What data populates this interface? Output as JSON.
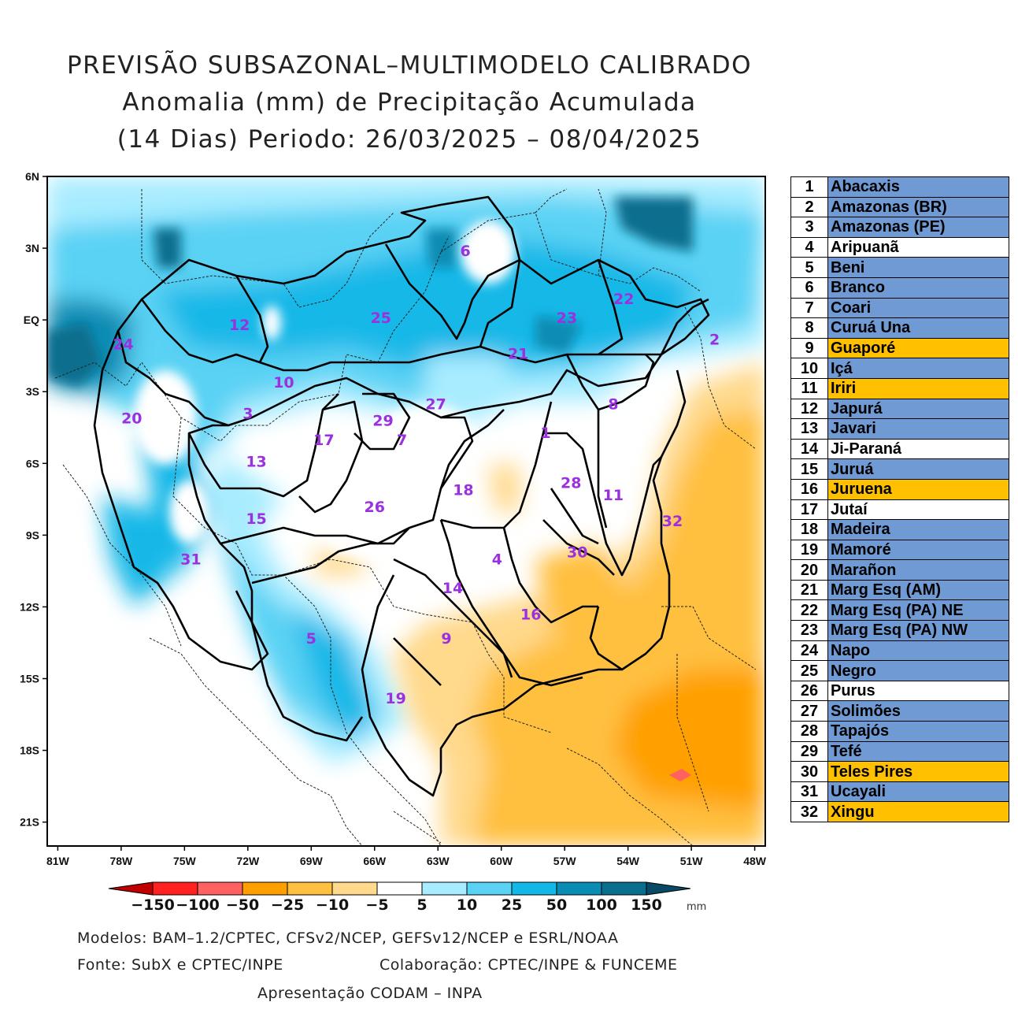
{
  "title": {
    "line1": "PREVISÃO SUBSAZONAL–MULTIMODELO CALIBRADO",
    "line2": "Anomalia (mm) de Precipitação Acumulada",
    "line3": "(14 Dias) Periodo: 26/03/2025 – 08/04/2025"
  },
  "map": {
    "lat_labels": [
      "6N",
      "3N",
      "EQ",
      "3S",
      "6S",
      "9S",
      "12S",
      "15S",
      "18S",
      "21S"
    ],
    "lon_labels": [
      "81W",
      "78W",
      "75W",
      "72W",
      "69W",
      "66W",
      "63W",
      "60W",
      "57W",
      "54W",
      "51W",
      "48W"
    ],
    "basin_labels": [
      {
        "id": "1",
        "lon": -57.9,
        "lat": -4.7
      },
      {
        "id": "2",
        "lon": -49.9,
        "lat": -0.8
      },
      {
        "id": "3",
        "lon": -72.0,
        "lat": -3.9
      },
      {
        "id": "4",
        "lon": -60.2,
        "lat": -10.0
      },
      {
        "id": "5",
        "lon": -69.0,
        "lat": -13.3
      },
      {
        "id": "6",
        "lon": -61.7,
        "lat": 2.9
      },
      {
        "id": "7",
        "lon": -64.7,
        "lat": -5.0
      },
      {
        "id": "8",
        "lon": -54.7,
        "lat": -3.5
      },
      {
        "id": "9",
        "lon": -62.6,
        "lat": -13.3
      },
      {
        "id": "10",
        "lon": -70.3,
        "lat": -2.6
      },
      {
        "id": "11",
        "lon": -54.7,
        "lat": -7.3
      },
      {
        "id": "12",
        "lon": -72.4,
        "lat": -0.2
      },
      {
        "id": "13",
        "lon": -71.6,
        "lat": -5.9
      },
      {
        "id": "14",
        "lon": -62.3,
        "lat": -11.2
      },
      {
        "id": "15",
        "lon": -71.6,
        "lat": -8.3
      },
      {
        "id": "16",
        "lon": -58.6,
        "lat": -12.3
      },
      {
        "id": "17",
        "lon": -68.4,
        "lat": -5.0
      },
      {
        "id": "18",
        "lon": -61.8,
        "lat": -7.1
      },
      {
        "id": "19",
        "lon": -65.0,
        "lat": -15.8
      },
      {
        "id": "20",
        "lon": -77.5,
        "lat": -4.1
      },
      {
        "id": "21",
        "lon": -59.2,
        "lat": -1.4
      },
      {
        "id": "22",
        "lon": -54.2,
        "lat": 0.9
      },
      {
        "id": "23",
        "lon": -56.9,
        "lat": 0.1
      },
      {
        "id": "24",
        "lon": -77.9,
        "lat": -1.0
      },
      {
        "id": "25",
        "lon": -65.7,
        "lat": 0.1
      },
      {
        "id": "26",
        "lon": -66.0,
        "lat": -7.8
      },
      {
        "id": "27",
        "lon": -63.1,
        "lat": -3.5
      },
      {
        "id": "28",
        "lon": -56.7,
        "lat": -6.8
      },
      {
        "id": "29",
        "lon": -65.6,
        "lat": -4.2
      },
      {
        "id": "30",
        "lon": -56.4,
        "lat": -9.7
      },
      {
        "id": "31",
        "lon": -74.7,
        "lat": -10.0
      },
      {
        "id": "32",
        "lon": -51.9,
        "lat": -8.4
      }
    ]
  },
  "legend": [
    {
      "num": "1",
      "name": "Abacaxis",
      "color": "#6f9ad3"
    },
    {
      "num": "2",
      "name": "Amazonas (BR)",
      "color": "#6f9ad3"
    },
    {
      "num": "3",
      "name": "Amazonas (PE)",
      "color": "#6f9ad3"
    },
    {
      "num": "4",
      "name": "Aripuanã",
      "color": "#ffffff"
    },
    {
      "num": "5",
      "name": "Beni",
      "color": "#6f9ad3"
    },
    {
      "num": "6",
      "name": "Branco",
      "color": "#6f9ad3"
    },
    {
      "num": "7",
      "name": "Coari",
      "color": "#6f9ad3"
    },
    {
      "num": "8",
      "name": "Curuá Una",
      "color": "#6f9ad3"
    },
    {
      "num": "9",
      "name": "Guaporé",
      "color": "#ffc000"
    },
    {
      "num": "10",
      "name": "Içá",
      "color": "#6f9ad3"
    },
    {
      "num": "11",
      "name": "Iriri",
      "color": "#ffc000"
    },
    {
      "num": "12",
      "name": "Japurá",
      "color": "#6f9ad3"
    },
    {
      "num": "13",
      "name": "Javari",
      "color": "#6f9ad3"
    },
    {
      "num": "14",
      "name": "Ji-Paraná",
      "color": "#ffffff"
    },
    {
      "num": "15",
      "name": "Juruá",
      "color": "#6f9ad3"
    },
    {
      "num": "16",
      "name": "Juruena",
      "color": "#ffc000"
    },
    {
      "num": "17",
      "name": "Jutaí",
      "color": "#ffffff"
    },
    {
      "num": "18",
      "name": "Madeira",
      "color": "#6f9ad3"
    },
    {
      "num": "19",
      "name": "Mamoré",
      "color": "#6f9ad3"
    },
    {
      "num": "20",
      "name": "Marañon",
      "color": "#6f9ad3"
    },
    {
      "num": "21",
      "name": "Marg Esq (AM)",
      "color": "#6f9ad3"
    },
    {
      "num": "22",
      "name": "Marg Esq (PA) NE",
      "color": "#6f9ad3"
    },
    {
      "num": "23",
      "name": "Marg Esq (PA) NW",
      "color": "#6f9ad3"
    },
    {
      "num": "24",
      "name": "Napo",
      "color": "#6f9ad3"
    },
    {
      "num": "25",
      "name": "Negro",
      "color": "#6f9ad3"
    },
    {
      "num": "26",
      "name": "Purus",
      "color": "#ffffff"
    },
    {
      "num": "27",
      "name": "Solimões",
      "color": "#6f9ad3"
    },
    {
      "num": "28",
      "name": "Tapajós",
      "color": "#6f9ad3"
    },
    {
      "num": "29",
      "name": "Tefé",
      "color": "#6f9ad3"
    },
    {
      "num": "30",
      "name": "Teles Pires",
      "color": "#ffc000"
    },
    {
      "num": "31",
      "name": "Ucayali",
      "color": "#6f9ad3"
    },
    {
      "num": "32",
      "name": "Xingu",
      "color": "#ffc000"
    }
  ],
  "colorbar": {
    "labels": [
      "−150",
      "−100",
      "−50",
      "−25",
      "−10",
      "−5",
      "5",
      "10",
      "25",
      "50",
      "100",
      "150"
    ],
    "unit": "mm",
    "colors": [
      "#c00000",
      "#ff2020",
      "#ff6060",
      "#ffa000",
      "#ffc040",
      "#ffd98c",
      "#ffffff",
      "#a8ecff",
      "#5ad2f4",
      "#14b8e8",
      "#0a8cb4",
      "#0a6e8e",
      "#084a66"
    ]
  },
  "footer": {
    "models": "Modelos: BAM–1.2/CPTEC, CFSv2/NCEP, GEFSv12/NCEP e ESRL/NOAA",
    "source": "Fonte: SubX e CPTEC/INPE",
    "collab": "Colaboração: CPTEC/INPE & FUNCEME",
    "presentation": "Apresentação CODAM – INPA"
  }
}
